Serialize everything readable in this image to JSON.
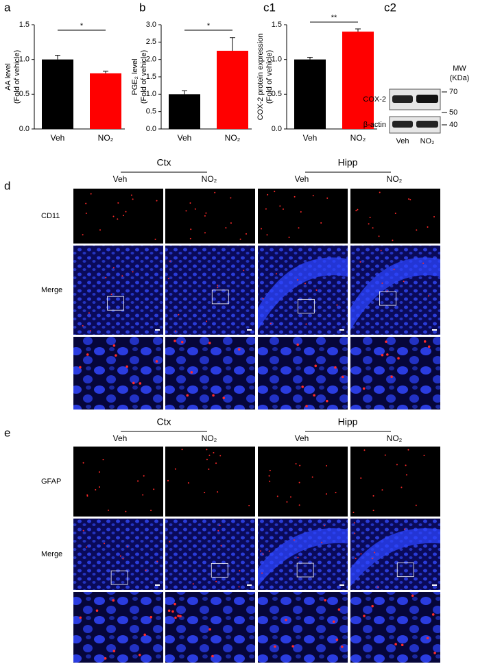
{
  "panel_labels": [
    "a",
    "b",
    "c1",
    "c2",
    "d",
    "e"
  ],
  "chart_data": [
    {
      "type": "bar",
      "ylabel": [
        "AA level",
        "(Fold of vehicle)"
      ],
      "categories": [
        "Veh",
        "NO₂"
      ],
      "values": [
        1.0,
        0.8
      ],
      "errors": [
        0.06,
        0.03
      ],
      "colors": [
        "#000000",
        "#ff0000"
      ],
      "ylim": [
        0,
        1.5
      ],
      "yticks": [
        {
          "value": 0,
          "label": "0.0"
        },
        {
          "value": 0.5,
          "label": "0.5"
        },
        {
          "value": 1,
          "label": "1.0"
        },
        {
          "value": 1.5,
          "label": "1.5"
        }
      ],
      "significance": "*"
    },
    {
      "type": "bar",
      "ylabel": [
        "PGE₂ level",
        "(Fold of vehicle)"
      ],
      "categories": [
        "Veh",
        "NO₂"
      ],
      "values": [
        1.0,
        2.25
      ],
      "errors": [
        0.1,
        0.38
      ],
      "colors": [
        "#000000",
        "#ff0000"
      ],
      "ylim": [
        0,
        3
      ],
      "yticks": [
        {
          "value": 0,
          "label": "0.0"
        },
        {
          "value": 0.5,
          "label": "0.5"
        },
        {
          "value": 1,
          "label": "1.0"
        },
        {
          "value": 1.5,
          "label": "1.5"
        },
        {
          "value": 2,
          "label": "2.0"
        },
        {
          "value": 2.5,
          "label": "2.5"
        },
        {
          "value": 3,
          "label": "3.0"
        }
      ],
      "significance": "*"
    },
    {
      "type": "bar",
      "ylabel": [
        "COX-2 protein expression",
        "(Fold of vehicle)"
      ],
      "categories": [
        "Veh",
        "NO₂"
      ],
      "values": [
        1.0,
        1.4
      ],
      "errors": [
        0.03,
        0.04
      ],
      "colors": [
        "#000000",
        "#ff0000"
      ],
      "ylim": [
        0,
        1.5
      ],
      "yticks": [
        {
          "value": 0,
          "label": "0.0"
        },
        {
          "value": 0.5,
          "label": "0.5"
        },
        {
          "value": 1,
          "label": "1.0"
        },
        {
          "value": 1.5,
          "label": "1.5"
        }
      ],
      "significance": "**"
    }
  ],
  "blot": {
    "mw": "MW",
    "unit": "(KDa)",
    "bands": [
      "COX-2",
      "β-actin"
    ],
    "markers": [
      "70",
      "50",
      "40"
    ],
    "lanes": [
      "Veh",
      "NO₂"
    ]
  },
  "panel_d": {
    "groups": [
      "Ctx",
      "Hipp"
    ],
    "conditions": [
      "Veh",
      "NO₂",
      "Veh",
      "NO₂"
    ],
    "rows": [
      "CD11",
      "Merge"
    ]
  },
  "panel_e": {
    "groups": [
      "Ctx",
      "Hipp"
    ],
    "conditions": [
      "Veh",
      "NO₂",
      "Veh",
      "NO₂"
    ],
    "rows": [
      "GFAP",
      "Merge"
    ]
  }
}
